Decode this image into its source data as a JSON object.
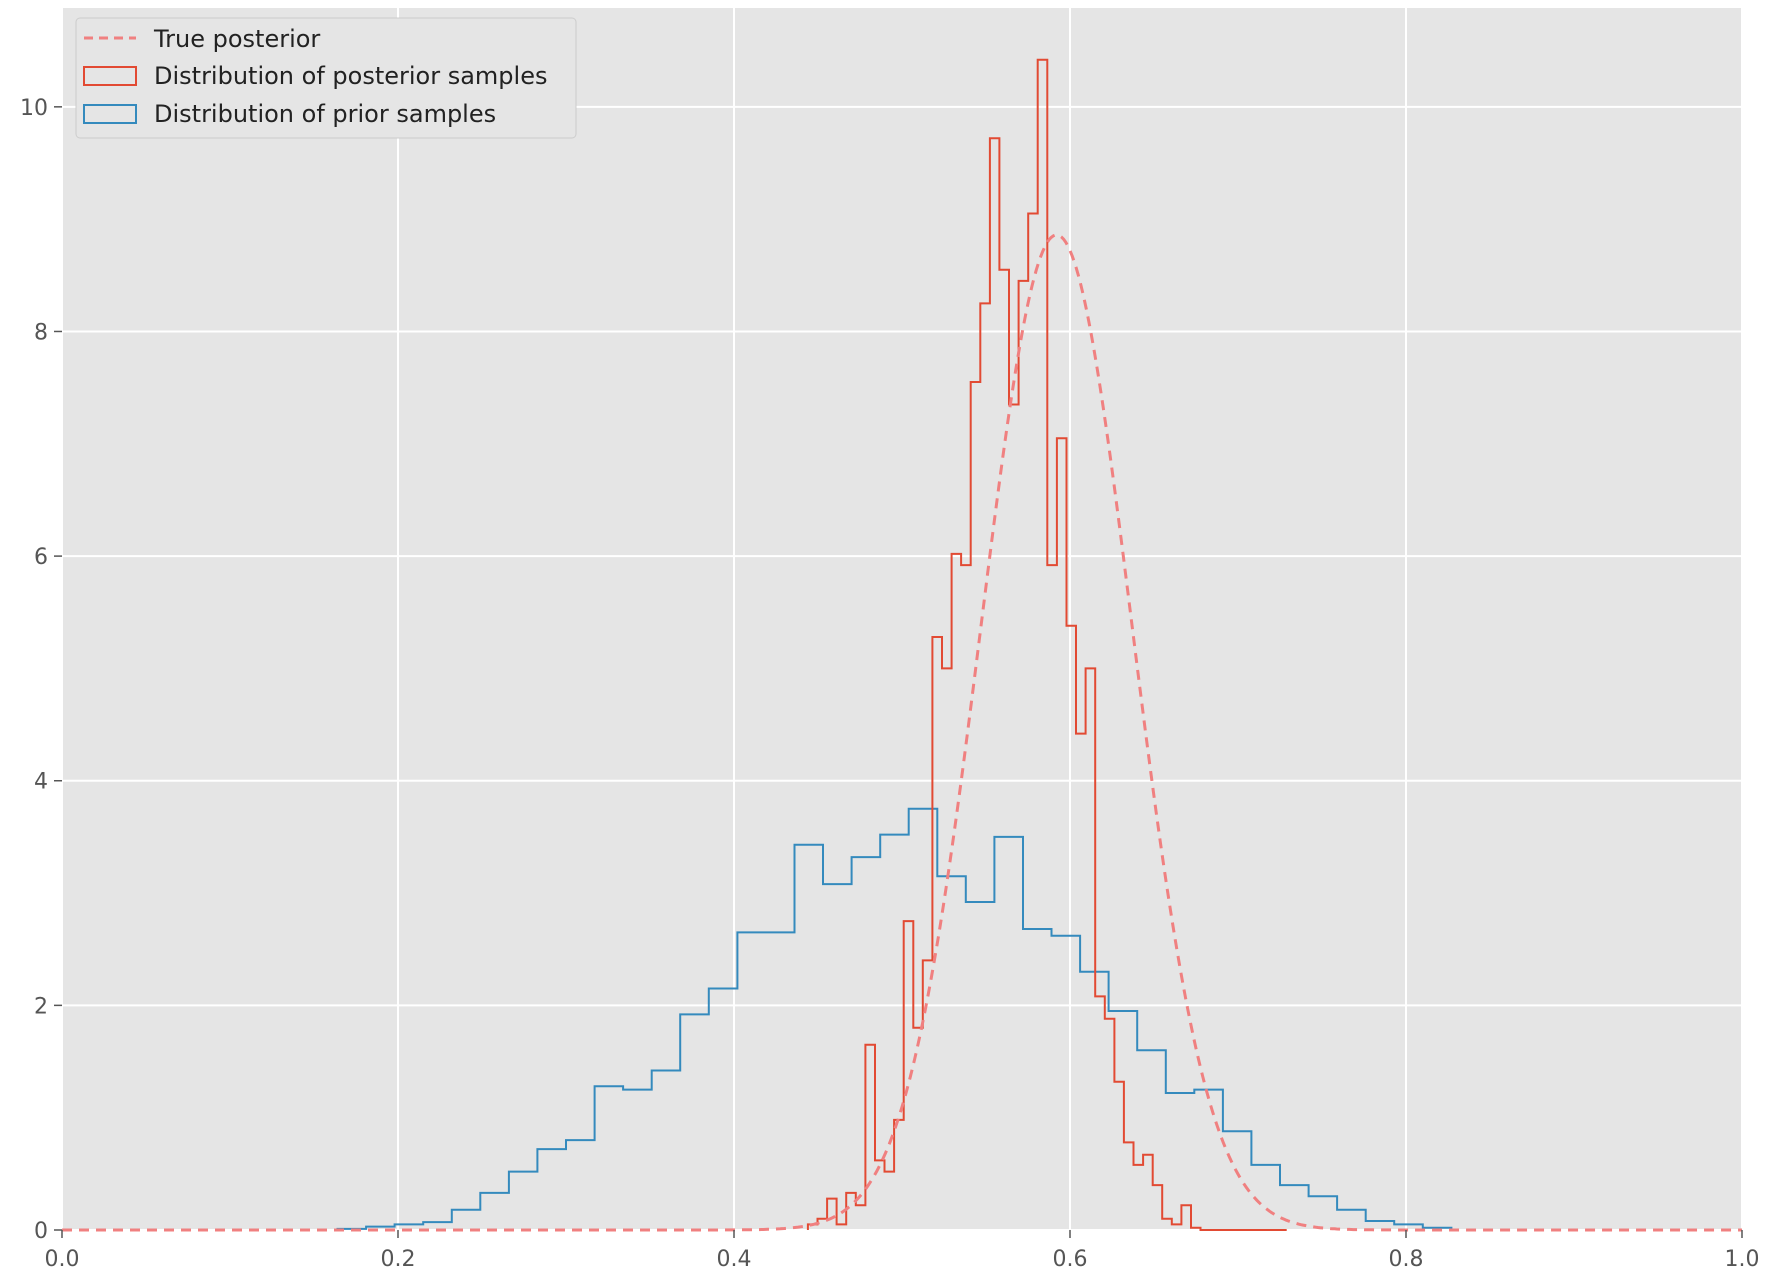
{
  "chart_data": {
    "type": "histogram",
    "xlim": [
      0.0,
      1.0
    ],
    "ylim": [
      0,
      10.88
    ],
    "grid": true,
    "legend_location": "upper-left",
    "x_ticks": [
      "0.0",
      "0.2",
      "0.4",
      "0.6",
      "0.8",
      "1.0"
    ],
    "y_ticks": [
      "0",
      "2",
      "4",
      "6",
      "8",
      "10"
    ],
    "x_tick_values": [
      0.0,
      0.2,
      0.4,
      0.6,
      0.8,
      1.0
    ],
    "y_tick_values": [
      0,
      2,
      4,
      6,
      8,
      10
    ],
    "series": [
      {
        "name": "True posterior",
        "kind": "line",
        "style": "dashed",
        "color": "#F08080",
        "distribution": "normal",
        "mean": 0.592,
        "sd": 0.045,
        "peak": 8.86
      },
      {
        "name": "Distribution of posterior samples",
        "kind": "step-histogram",
        "color": "#E24A33",
        "bin_edges": [
          0.444,
          0.4497,
          0.4554,
          0.4611,
          0.4668,
          0.4725,
          0.4782,
          0.4839,
          0.4896,
          0.4953,
          0.501,
          0.5067,
          0.5124,
          0.5181,
          0.5238,
          0.5295,
          0.5352,
          0.5409,
          0.5466,
          0.5523,
          0.558,
          0.5637,
          0.5694,
          0.5751,
          0.5808,
          0.5865,
          0.5922,
          0.5979,
          0.6036,
          0.6093,
          0.615,
          0.6207,
          0.6264,
          0.6321,
          0.6378,
          0.6435,
          0.6492,
          0.6549,
          0.6606,
          0.6663,
          0.672,
          0.6777,
          0.6834,
          0.6891,
          0.6948,
          0.7005,
          0.7062,
          0.7119,
          0.7176,
          0.7233,
          0.729
        ],
        "values": [
          0.05,
          0.1,
          0.28,
          0.05,
          0.33,
          0.22,
          1.65,
          0.62,
          0.52,
          0.98,
          2.75,
          1.8,
          2.4,
          5.28,
          5.0,
          6.02,
          5.92,
          7.55,
          8.25,
          9.72,
          8.55,
          7.35,
          8.45,
          9.05,
          10.42,
          5.92,
          7.05,
          5.38,
          4.42,
          5.0,
          2.08,
          1.88,
          1.32,
          0.78,
          0.58,
          0.67,
          0.4,
          0.1,
          0.05,
          0.22,
          0.02,
          0.0,
          0.0,
          0.0,
          0.0,
          0.0,
          0.0,
          0.0,
          0.0,
          0.0
        ]
      },
      {
        "name": "Distribution of prior samples",
        "kind": "step-histogram",
        "color": "#348ABD",
        "bin_edges": [
          0.164,
          0.181,
          0.198,
          0.215,
          0.232,
          0.249,
          0.266,
          0.283,
          0.3,
          0.317,
          0.334,
          0.351,
          0.368,
          0.385,
          0.402,
          0.419,
          0.436,
          0.453,
          0.47,
          0.487,
          0.504,
          0.521,
          0.538,
          0.555,
          0.572,
          0.589,
          0.606,
          0.623,
          0.64,
          0.657,
          0.674,
          0.691,
          0.708,
          0.725,
          0.742,
          0.759,
          0.776,
          0.793,
          0.81,
          0.827
        ],
        "values": [
          0.01,
          0.03,
          0.05,
          0.07,
          0.18,
          0.33,
          0.52,
          0.72,
          0.8,
          1.28,
          1.25,
          1.42,
          1.92,
          2.15,
          2.65,
          2.65,
          3.43,
          3.08,
          3.32,
          3.52,
          3.75,
          3.15,
          2.92,
          3.5,
          2.68,
          2.62,
          2.3,
          1.95,
          1.6,
          1.22,
          1.25,
          0.88,
          0.58,
          0.4,
          0.3,
          0.18,
          0.08,
          0.05,
          0.02
        ]
      }
    ]
  }
}
